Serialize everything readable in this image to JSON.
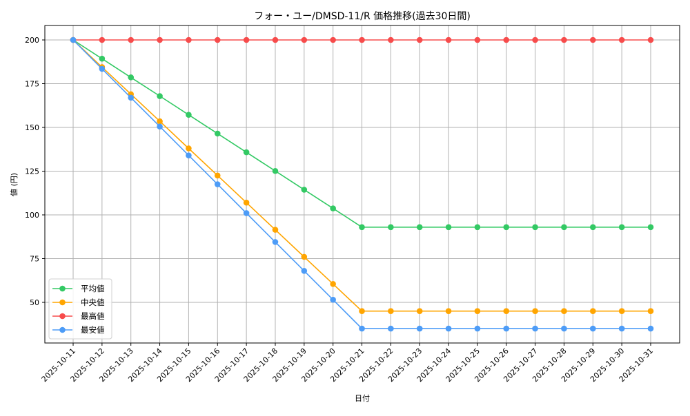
{
  "chart_data": {
    "type": "line",
    "title": "フォー・ユー/DMSD-11/R 価格推移(過去30日間)",
    "xlabel": "日付",
    "ylabel": "値 (円)",
    "categories": [
      "2025-10-11",
      "2025-10-12",
      "2025-10-13",
      "2025-10-14",
      "2025-10-15",
      "2025-10-16",
      "2025-10-17",
      "2025-10-18",
      "2025-10-19",
      "2025-10-20",
      "2025-10-21",
      "2025-10-22",
      "2025-10-23",
      "2025-10-24",
      "2025-10-25",
      "2025-10-26",
      "2025-10-27",
      "2025-10-28",
      "2025-10-29",
      "2025-10-30",
      "2025-10-31"
    ],
    "yticks": [
      50,
      75,
      100,
      125,
      150,
      175,
      200
    ],
    "ylim": [
      28,
      207
    ],
    "grid": true,
    "legend_position": "lower left",
    "series": [
      {
        "name": "平均値",
        "color": "#33c964",
        "values": [
          200,
          189.3,
          178.6,
          167.9,
          157.2,
          146.5,
          135.8,
          125.1,
          114.4,
          103.7,
          93,
          93,
          93,
          93,
          93,
          93,
          93,
          93,
          93,
          93,
          93
        ]
      },
      {
        "name": "中央値",
        "color": "#ffa500",
        "values": [
          200,
          184.5,
          169,
          153.5,
          138,
          122.5,
          107,
          91.5,
          76,
          60.5,
          45,
          45,
          45,
          45,
          45,
          45,
          45,
          45,
          45,
          45,
          45
        ]
      },
      {
        "name": "最高値",
        "color": "#f74b4b",
        "values": [
          200,
          200,
          200,
          200,
          200,
          200,
          200,
          200,
          200,
          200,
          200,
          200,
          200,
          200,
          200,
          200,
          200,
          200,
          200,
          200,
          200
        ]
      },
      {
        "name": "最安値",
        "color": "#4d9cf7",
        "values": [
          200,
          183.5,
          167,
          150.5,
          134,
          117.5,
          101,
          84.5,
          68,
          51.5,
          35,
          35,
          35,
          35,
          35,
          35,
          35,
          35,
          35,
          35,
          35
        ]
      }
    ]
  }
}
